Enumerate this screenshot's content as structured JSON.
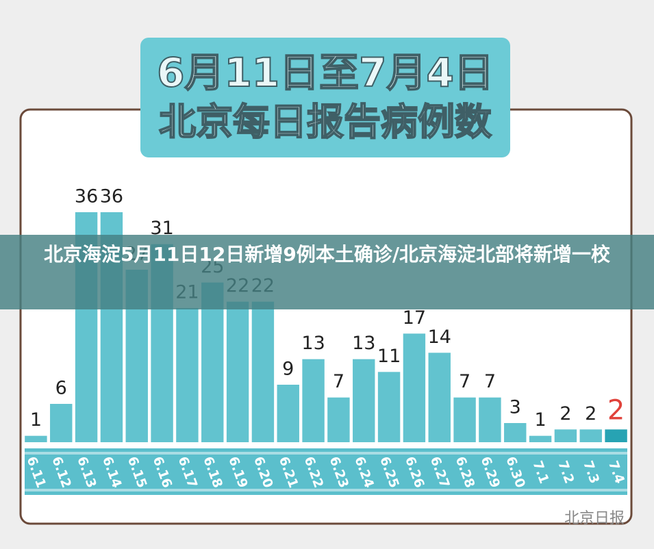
{
  "chart_data": {
    "type": "bar",
    "title": "6月11日至7月4日",
    "subtitle": "北京每日报告病例数",
    "categories": [
      "6.11",
      "6.12",
      "6.13",
      "6.14",
      "6.15",
      "6.16",
      "6.17",
      "6.18",
      "6.19",
      "6.20",
      "6.21",
      "6.22",
      "6.23",
      "6.24",
      "6.25",
      "6.26",
      "6.27",
      "6.28",
      "6.29",
      "6.30",
      "7.1",
      "7.2",
      "7.3",
      "7.4"
    ],
    "values": [
      1,
      6,
      36,
      36,
      27,
      31,
      21,
      25,
      22,
      22,
      9,
      13,
      7,
      13,
      11,
      17,
      14,
      7,
      7,
      3,
      1,
      2,
      2,
      2
    ],
    "colors": [
      "#62c3cf",
      "#62c3cf",
      "#62c3cf",
      "#62c3cf",
      "#62c3cf",
      "#62c3cf",
      "#62c3cf",
      "#62c3cf",
      "#62c3cf",
      "#62c3cf",
      "#62c3cf",
      "#62c3cf",
      "#62c3cf",
      "#62c3cf",
      "#62c3cf",
      "#62c3cf",
      "#62c3cf",
      "#62c3cf",
      "#62c3cf",
      "#62c3cf",
      "#62c3cf",
      "#62c3cf",
      "#62c3cf",
      "#27a3b3"
    ],
    "label_colors": [
      "#222222",
      "#222222",
      "#222222",
      "#222222",
      "#222222",
      "#222222",
      "#222222",
      "#222222",
      "#222222",
      "#222222",
      "#222222",
      "#222222",
      "#222222",
      "#222222",
      "#222222",
      "#222222",
      "#222222",
      "#222222",
      "#222222",
      "#222222",
      "#222222",
      "#222222",
      "#222222",
      "#e0413a"
    ],
    "ylim": [
      0,
      36
    ],
    "banner": "北京海淀5月11日12日新增9例本土确诊/北京海淀北部将新增一校",
    "watermark": "北京日报"
  }
}
